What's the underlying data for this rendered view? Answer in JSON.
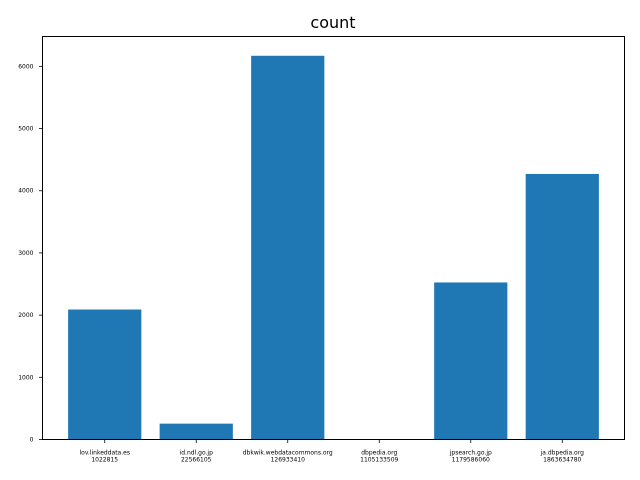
{
  "chart_data": {
    "type": "bar",
    "title": "count",
    "xlabel": "",
    "ylabel": "",
    "categories": [
      [
        "lov.linkeddata.es",
        "1022815"
      ],
      [
        "id.ndl.go.jp",
        "22566105"
      ],
      [
        "dbkwik.webdatacommons.org",
        "126933410"
      ],
      [
        "dbpedia.org",
        "1105133509"
      ],
      [
        "jpsearch.go.jp",
        "1179586060"
      ],
      [
        "ja.dbpedia.org",
        "1863634780"
      ]
    ],
    "values": [
      2090,
      255,
      6170,
      0,
      2525,
      4270
    ],
    "ylim": [
      0,
      6480
    ],
    "yticks": [
      0,
      1000,
      2000,
      3000,
      4000,
      5000,
      6000
    ],
    "bar_color": "#1f77b4",
    "grid": false,
    "legend": "none"
  }
}
